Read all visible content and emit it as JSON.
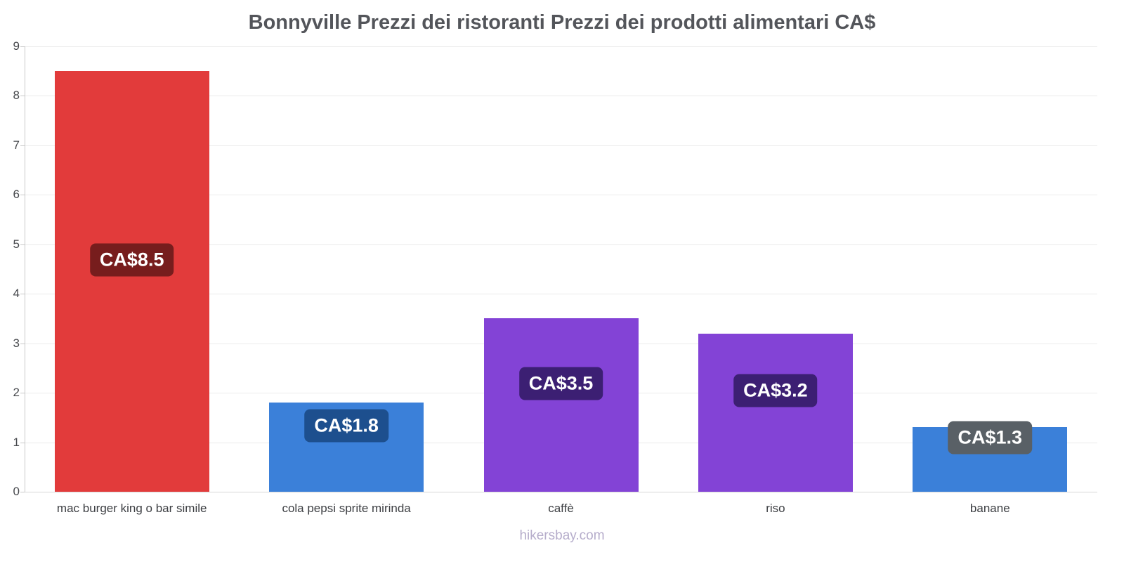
{
  "footer": "hikersbay.com",
  "chart_data": {
    "type": "bar",
    "title": "Bonnyville Prezzi dei ristoranti Prezzi dei prodotti alimentari CA$",
    "xlabel": "",
    "ylabel": "",
    "categories": [
      "mac burger king o bar simile",
      "cola pepsi sprite mirinda",
      "caffè",
      "riso",
      "banane"
    ],
    "values": [
      8.5,
      1.8,
      3.5,
      3.2,
      1.3
    ],
    "value_labels": [
      "CA$8.5",
      "CA$1.8",
      "CA$3.5",
      "CA$3.2",
      "CA$1.3"
    ],
    "bar_colors": [
      "#e23b3b",
      "#3b80d9",
      "#8343d6",
      "#8343d6",
      "#3b80d9"
    ],
    "badge_colors": [
      "#771d1d",
      "#1d4f8e",
      "#3c1f73",
      "#3c1f73",
      "#596066"
    ],
    "ylim": [
      0,
      9
    ],
    "yticks": [
      0,
      1,
      2,
      3,
      4,
      5,
      6,
      7,
      8,
      9
    ],
    "grid": true,
    "legend": "none"
  }
}
